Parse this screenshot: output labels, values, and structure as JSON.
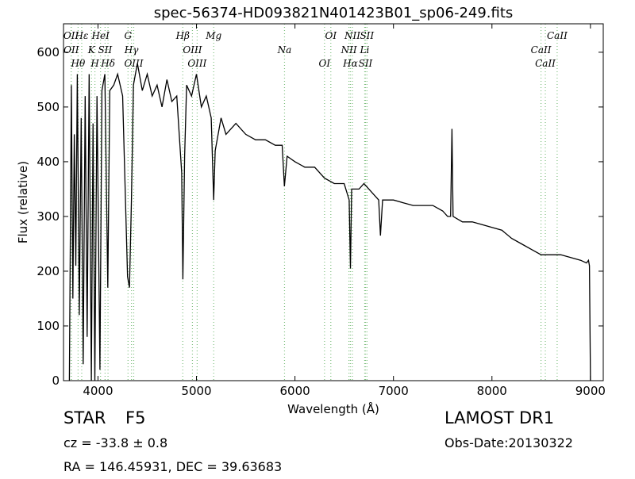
{
  "chart_data": {
    "type": "line",
    "title": "spec-56374-HD093821N401423B01_sp06-249.fits",
    "xlabel": "Wavelength (Å)",
    "ylabel": "Flux (relative)",
    "xlim": [
      3650,
      9130
    ],
    "ylim": [
      0,
      652
    ],
    "xticks": [
      4000,
      5000,
      6000,
      7000,
      8000,
      9000
    ],
    "yticks": [
      0,
      100,
      200,
      300,
      400,
      500,
      600
    ],
    "color": "#000000",
    "line_color": "#7fbf7f",
    "x": [
      3710,
      3730,
      3745,
      3760,
      3775,
      3790,
      3810,
      3830,
      3850,
      3870,
      3890,
      3910,
      3933,
      3950,
      3968,
      3990,
      4020,
      4040,
      4070,
      4100,
      4120,
      4160,
      4200,
      4250,
      4300,
      4320,
      4340,
      4360,
      4400,
      4450,
      4500,
      4550,
      4600,
      4650,
      4700,
      4750,
      4800,
      4850,
      4862,
      4880,
      4900,
      4950,
      5000,
      5050,
      5100,
      5150,
      5175,
      5190,
      5250,
      5300,
      5400,
      5500,
      5600,
      5700,
      5800,
      5870,
      5893,
      5920,
      6000,
      6100,
      6200,
      6300,
      6400,
      6500,
      6550,
      6563,
      6575,
      6650,
      6700,
      6800,
      6850,
      6868,
      6890,
      7000,
      7100,
      7200,
      7300,
      7400,
      7500,
      7550,
      7580,
      7594,
      7605,
      7700,
      7800,
      7900,
      8000,
      8100,
      8200,
      8300,
      8400,
      8500,
      8600,
      8700,
      8800,
      8900,
      8960,
      8980,
      8990,
      9000
    ],
    "values": [
      0,
      540,
      150,
      450,
      210,
      560,
      120,
      480,
      30,
      520,
      80,
      560,
      0,
      470,
      0,
      520,
      20,
      530,
      560,
      170,
      530,
      540,
      560,
      520,
      190,
      170,
      330,
      540,
      580,
      530,
      560,
      520,
      540,
      500,
      550,
      510,
      520,
      380,
      185,
      410,
      540,
      520,
      560,
      500,
      520,
      480,
      330,
      420,
      480,
      450,
      470,
      450,
      440,
      440,
      430,
      430,
      355,
      410,
      400,
      390,
      390,
      370,
      360,
      360,
      330,
      205,
      350,
      350,
      360,
      340,
      330,
      265,
      330,
      330,
      325,
      320,
      320,
      320,
      310,
      300,
      300,
      460,
      300,
      290,
      290,
      285,
      280,
      275,
      260,
      250,
      240,
      230,
      230,
      230,
      225,
      220,
      215,
      220,
      210,
      0
    ],
    "lines": [
      {
        "label": "OII",
        "wavelength": 3727
      },
      {
        "label": "OII",
        "wavelength": 3729
      },
      {
        "label": "Hθ",
        "wavelength": 3798
      },
      {
        "label": "Hε",
        "wavelength": 3835
      },
      {
        "label": "K",
        "wavelength": 3934
      },
      {
        "label": "H",
        "wavelength": 3969
      },
      {
        "label": "HeI",
        "wavelength": 4026
      },
      {
        "label": "SII",
        "wavelength": 4072
      },
      {
        "label": "Hδ",
        "wavelength": 4102
      },
      {
        "label": "G",
        "wavelength": 4305
      },
      {
        "label": "Hγ",
        "wavelength": 4340
      },
      {
        "label": "OIII",
        "wavelength": 4363
      },
      {
        "label": "Hβ",
        "wavelength": 4861
      },
      {
        "label": "OIII",
        "wavelength": 4959
      },
      {
        "label": "OIII",
        "wavelength": 5007
      },
      {
        "label": "Mg",
        "wavelength": 5175
      },
      {
        "label": "Na",
        "wavelength": 5894
      },
      {
        "label": "OI",
        "wavelength": 6300
      },
      {
        "label": "OI",
        "wavelength": 6364
      },
      {
        "label": "NII",
        "wavelength": 6548
      },
      {
        "label": "Hα",
        "wavelength": 6563
      },
      {
        "label": "NII",
        "wavelength": 6583
      },
      {
        "label": "Li",
        "wavelength": 6708
      },
      {
        "label": "SII",
        "wavelength": 6716
      },
      {
        "label": "SII",
        "wavelength": 6731
      },
      {
        "label": "CaII",
        "wavelength": 8498
      },
      {
        "label": "CaII",
        "wavelength": 8542
      },
      {
        "label": "CaII",
        "wavelength": 8662
      }
    ]
  },
  "footer": {
    "class": "STAR",
    "subclass": "F5",
    "cz": "cz = -33.8 ± 0.8",
    "coords": "RA = 146.45931, DEC = 39.63683",
    "survey": "LAMOST DR1",
    "obs_date": "Obs-Date:20130322"
  }
}
